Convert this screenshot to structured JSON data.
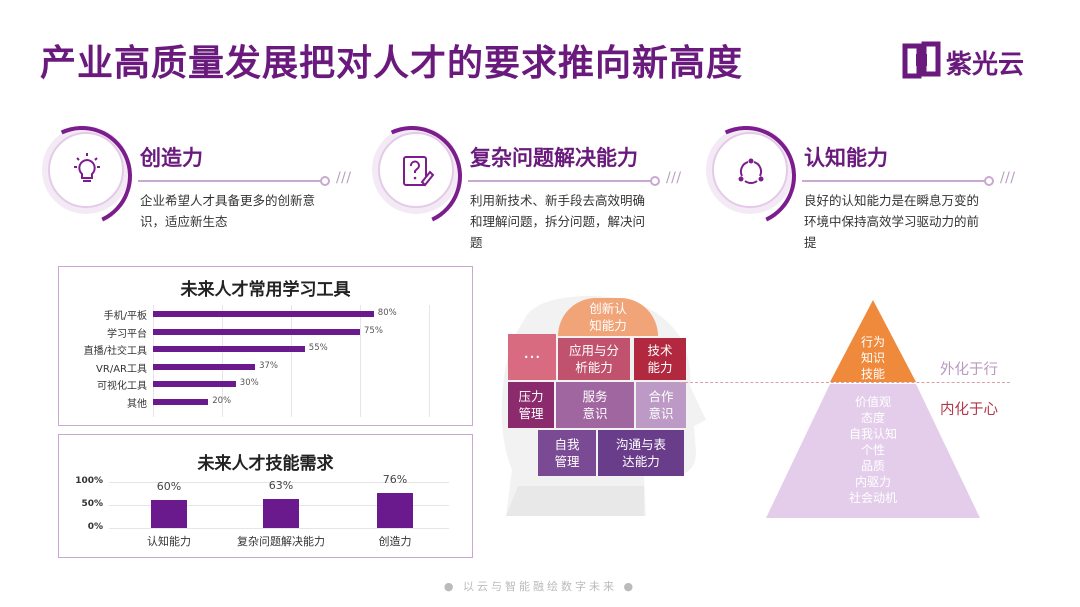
{
  "title": "产业高质量发展把对人才的要求推向新高度",
  "logo": {
    "text": "紫光云",
    "icon": "unis-logo-icon",
    "color": "#6a1a7c"
  },
  "features": [
    {
      "title": "创造力",
      "icon": "lightbulb-icon",
      "desc": "企业希望人才具备更多的创新意识，适应新生态"
    },
    {
      "title": "复杂问题解决能力",
      "icon": "question-note-icon",
      "desc": "利用新技术、新手段去高效明确和理解问题，拆分问题，解决问题"
    },
    {
      "title": "认知能力",
      "icon": "cycle-icon",
      "desc": "良好的认知能力是在瞬息万变的环境中保持高效学习驱动力的前提"
    }
  ],
  "chart_data": [
    {
      "type": "bar",
      "orientation": "horizontal",
      "title": "未来人才常用学习工具",
      "categories": [
        "手机/平板",
        "学习平台",
        "直播/社交工具",
        "VR/AR工具",
        "可视化工具",
        "其他"
      ],
      "values": [
        80,
        75,
        55,
        37,
        30,
        20
      ],
      "value_labels": [
        "80%",
        "75%",
        "55%",
        "37%",
        "30%",
        "20%"
      ],
      "unit": "%",
      "color": "#6a1a8c"
    },
    {
      "type": "bar",
      "orientation": "vertical",
      "title": "未来人才技能需求",
      "categories": [
        "认知能力",
        "复杂问题解决能力",
        "创造力"
      ],
      "values": [
        60,
        63,
        76
      ],
      "value_labels": [
        "60%",
        "63%",
        "76%"
      ],
      "yticks": [
        "100%",
        "50%",
        "0%"
      ],
      "ylim": [
        0,
        100
      ],
      "color": "#6a1a8c"
    }
  ],
  "head_puzzle": {
    "tiles": [
      {
        "label": "创新认\n知能力",
        "color": "#f0a478"
      },
      {
        "label": "···",
        "color": "#d86b80"
      },
      {
        "label": "应用与分\n析能力",
        "color": "#c0526e"
      },
      {
        "label": "技术\n能力",
        "color": "#b2283e"
      },
      {
        "label": "压力\n管理",
        "color": "#8c2a6e"
      },
      {
        "label": "服务\n意识",
        "color": "#a066a0"
      },
      {
        "label": "合作\n意识",
        "color": "#bd9ac6"
      },
      {
        "label": "自我\n管理",
        "color": "#7a4a94"
      },
      {
        "label": "沟通与表\n达能力",
        "color": "#6a3d8a"
      }
    ]
  },
  "pyramid": {
    "top_label": "行为\n知识\n技能",
    "bottom_items": [
      "价值观",
      "态度",
      "自我认知",
      "个性",
      "品质",
      "内驱力",
      "社会动机"
    ],
    "outer_label": "外化于行",
    "inner_label": "内化于心",
    "top_color": "#ef8a3c",
    "bottom_color": "#e4cdea",
    "outer_color": "#b89ac0",
    "inner_color": "#b03a4c"
  },
  "footer": "● 以云与智能融绘数字未来 ●"
}
